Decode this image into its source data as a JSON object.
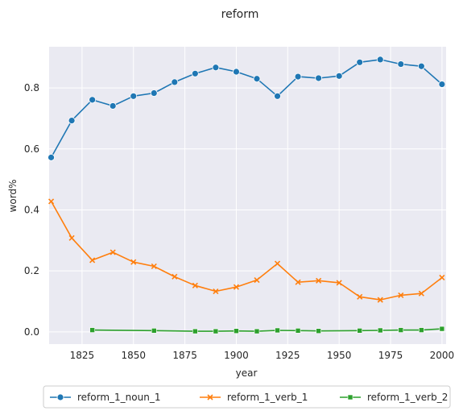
{
  "chart_data": {
    "type": "line",
    "title": "reform",
    "xlabel": "year",
    "ylabel": "word%",
    "xlim": [
      1809,
      2002
    ],
    "ylim": [
      -0.04,
      0.935
    ],
    "xticks": [
      1825,
      1850,
      1875,
      1900,
      1925,
      1950,
      1975,
      2000
    ],
    "yticks": [
      0.0,
      0.2,
      0.4,
      0.6,
      0.8
    ],
    "ytick_labels": [
      "0.0",
      "0.2",
      "0.4",
      "0.6",
      "0.8"
    ],
    "grid": true,
    "legend_placement": "bottom-center",
    "series": [
      {
        "name": "reform_1_noun_1",
        "color": "#1f77b4",
        "marker": "circle",
        "x": [
          1810,
          1820,
          1830,
          1840,
          1850,
          1860,
          1870,
          1880,
          1890,
          1900,
          1910,
          1920,
          1930,
          1940,
          1950,
          1960,
          1970,
          1980,
          1990,
          2000
        ],
        "y": [
          0.572,
          0.693,
          0.761,
          0.741,
          0.773,
          0.783,
          0.819,
          0.847,
          0.867,
          0.853,
          0.83,
          0.773,
          0.837,
          0.832,
          0.839,
          0.884,
          0.893,
          0.878,
          0.871,
          0.812
        ]
      },
      {
        "name": "reform_1_verb_1",
        "color": "#ff7f0e",
        "marker": "x",
        "x": [
          1810,
          1820,
          1830,
          1840,
          1850,
          1860,
          1870,
          1880,
          1890,
          1900,
          1910,
          1920,
          1930,
          1940,
          1950,
          1960,
          1970,
          1980,
          1990,
          2000
        ],
        "y": [
          0.428,
          0.308,
          0.235,
          0.261,
          0.229,
          0.215,
          0.181,
          0.152,
          0.133,
          0.147,
          0.17,
          0.224,
          0.163,
          0.168,
          0.161,
          0.115,
          0.105,
          0.12,
          0.126,
          0.178
        ]
      },
      {
        "name": "reform_1_verb_2",
        "color": "#2ca02c",
        "marker": "square",
        "x": [
          1830,
          1860,
          1880,
          1890,
          1900,
          1910,
          1920,
          1930,
          1940,
          1960,
          1970,
          1980,
          1990,
          2000
        ],
        "y": [
          0.006,
          0.004,
          0.002,
          0.002,
          0.003,
          0.002,
          0.005,
          0.004,
          0.003,
          0.004,
          0.005,
          0.006,
          0.006,
          0.01
        ]
      }
    ]
  }
}
